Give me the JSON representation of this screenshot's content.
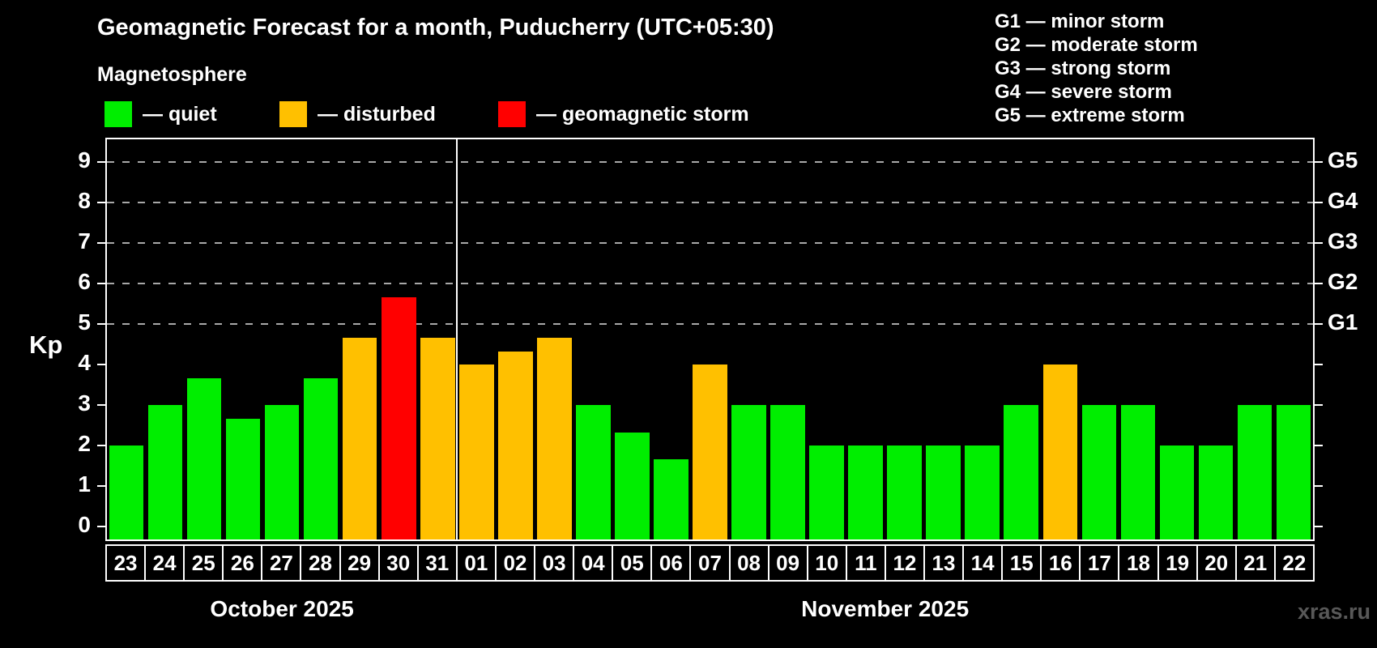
{
  "title": "Geomagnetic Forecast for a month, Puducherry (UTC+05:30)",
  "subtitle": "Magnetosphere",
  "legend": {
    "items": [
      {
        "key": "quiet",
        "label": "— quiet"
      },
      {
        "key": "disturbed",
        "label": "— disturbed"
      },
      {
        "key": "storm",
        "label": "— geomagnetic storm"
      }
    ]
  },
  "g_scale_legend": {
    "items": [
      "G1 — minor storm",
      "G2 — moderate storm",
      "G3 — strong storm",
      "G4 — severe storm",
      "G5 — extreme storm"
    ]
  },
  "watermark": "xras.ru",
  "chart_data": {
    "type": "bar",
    "title": "Geomagnetic Forecast for a month, Puducherry (UTC+05:30)",
    "subtitle": "Magnetosphere",
    "ylabel": "Kp",
    "ylim": [
      0,
      9
    ],
    "yticks": [
      0,
      1,
      2,
      3,
      4,
      5,
      6,
      7,
      8,
      9
    ],
    "gridline_levels": [
      5,
      6,
      7,
      8,
      9
    ],
    "right_axis_labels": [
      {
        "level": 5,
        "text": "G1"
      },
      {
        "level": 6,
        "text": "G2"
      },
      {
        "level": 7,
        "text": "G3"
      },
      {
        "level": 8,
        "text": "G4"
      },
      {
        "level": 9,
        "text": "G5"
      }
    ],
    "colors": {
      "quiet": "#00ee00",
      "disturbed": "#ffc000",
      "storm": "#ff0000",
      "axis": "#ffffff",
      "grid": "#a8a8a8",
      "background": "#000000"
    },
    "legend_position": "top-left",
    "grid": true,
    "months": [
      {
        "label": "October 2025",
        "days": 9
      },
      {
        "label": "November 2025",
        "days": 22
      }
    ],
    "bars": [
      {
        "day": "23",
        "value": 2.0,
        "status": "quiet"
      },
      {
        "day": "24",
        "value": 3.0,
        "status": "quiet"
      },
      {
        "day": "25",
        "value": 3.67,
        "status": "quiet"
      },
      {
        "day": "26",
        "value": 2.67,
        "status": "quiet"
      },
      {
        "day": "27",
        "value": 3.0,
        "status": "quiet"
      },
      {
        "day": "28",
        "value": 3.67,
        "status": "quiet"
      },
      {
        "day": "29",
        "value": 4.67,
        "status": "disturbed"
      },
      {
        "day": "30",
        "value": 5.67,
        "status": "storm"
      },
      {
        "day": "31",
        "value": 4.67,
        "status": "disturbed"
      },
      {
        "day": "01",
        "value": 4.0,
        "status": "disturbed"
      },
      {
        "day": "02",
        "value": 4.33,
        "status": "disturbed"
      },
      {
        "day": "03",
        "value": 4.67,
        "status": "disturbed"
      },
      {
        "day": "04",
        "value": 3.0,
        "status": "quiet"
      },
      {
        "day": "05",
        "value": 2.33,
        "status": "quiet"
      },
      {
        "day": "06",
        "value": 1.67,
        "status": "quiet"
      },
      {
        "day": "07",
        "value": 4.0,
        "status": "disturbed"
      },
      {
        "day": "08",
        "value": 3.0,
        "status": "quiet"
      },
      {
        "day": "09",
        "value": 3.0,
        "status": "quiet"
      },
      {
        "day": "10",
        "value": 2.0,
        "status": "quiet"
      },
      {
        "day": "11",
        "value": 2.0,
        "status": "quiet"
      },
      {
        "day": "12",
        "value": 2.0,
        "status": "quiet"
      },
      {
        "day": "13",
        "value": 2.0,
        "status": "quiet"
      },
      {
        "day": "14",
        "value": 2.0,
        "status": "quiet"
      },
      {
        "day": "15",
        "value": 3.0,
        "status": "quiet"
      },
      {
        "day": "16",
        "value": 4.0,
        "status": "disturbed"
      },
      {
        "day": "17",
        "value": 3.0,
        "status": "quiet"
      },
      {
        "day": "18",
        "value": 3.0,
        "status": "quiet"
      },
      {
        "day": "19",
        "value": 2.0,
        "status": "quiet"
      },
      {
        "day": "20",
        "value": 2.0,
        "status": "quiet"
      },
      {
        "day": "21",
        "value": 3.0,
        "status": "quiet"
      },
      {
        "day": "22",
        "value": 3.0,
        "status": "quiet"
      }
    ]
  }
}
